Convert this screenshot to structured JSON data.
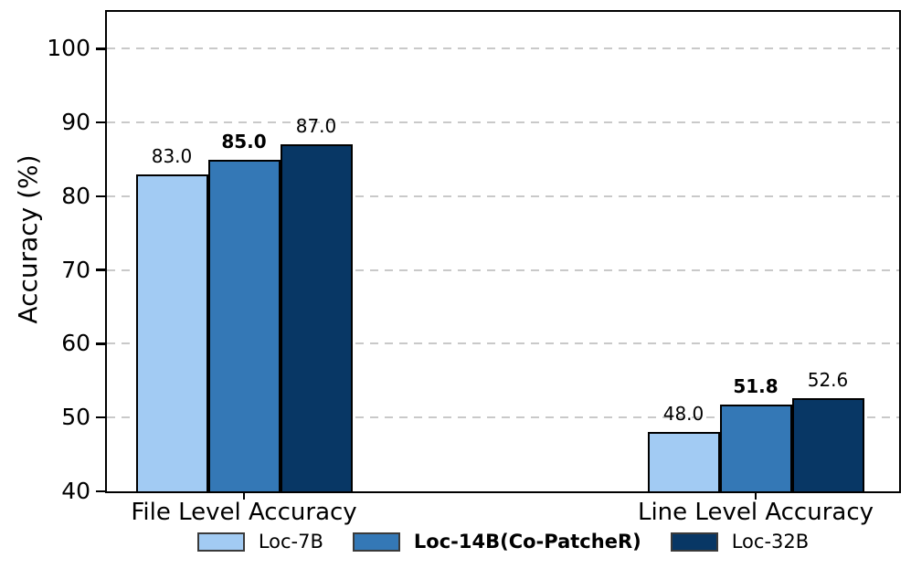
{
  "chart_data": {
    "type": "bar",
    "title": "",
    "ylabel": "Accuracy (%)",
    "xlabel": "",
    "ylim": [
      40,
      105
    ],
    "yticks": [
      40,
      50,
      60,
      70,
      80,
      90,
      100
    ],
    "grid": "horizontal-dashed",
    "grid_color": "#c9c9c9",
    "legend_position": "bottom-center",
    "categories": [
      "File Level Accuracy",
      "Line Level Accuracy"
    ],
    "series": [
      {
        "name": "Loc-7B",
        "color": "#A2CBF3",
        "bold": false,
        "values": [
          83.0,
          48.0
        ]
      },
      {
        "name": "Loc-14B(Co-PatcheR)",
        "color": "#3478B6",
        "bold": true,
        "values": [
          85.0,
          51.8
        ]
      },
      {
        "name": "Loc-32B",
        "color": "#083765",
        "bold": false,
        "values": [
          87.0,
          52.6
        ]
      }
    ],
    "value_label_format": "one-decimal",
    "bar_edge_color": "#000000",
    "background_color": "#ffffff"
  }
}
